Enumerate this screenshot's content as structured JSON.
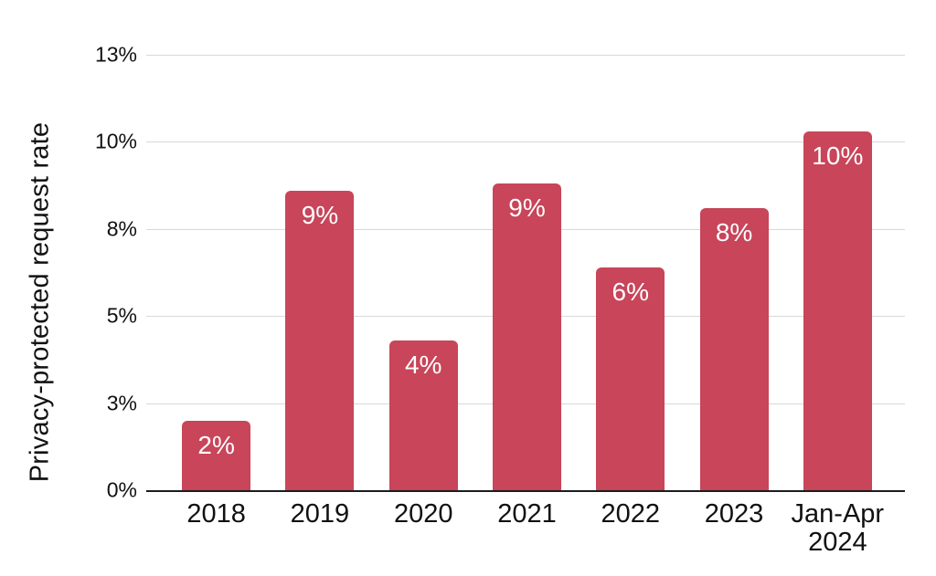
{
  "chart_data": {
    "type": "bar",
    "title": "",
    "xlabel": "",
    "ylabel": "Privacy-protected request rate",
    "categories": [
      "2018",
      "2019",
      "2020",
      "2021",
      "2022",
      "2023",
      "Jan-Apr 2024"
    ],
    "values": [
      2.0,
      8.6,
      4.3,
      8.8,
      6.4,
      8.1,
      10.3
    ],
    "bar_labels": [
      "2%",
      "9%",
      "4%",
      "9%",
      "6%",
      "8%",
      "10%"
    ],
    "ylim": [
      0,
      12.5
    ],
    "yticks": [
      {
        "value": 0,
        "label": "0%"
      },
      {
        "value": 2.5,
        "label": "3%"
      },
      {
        "value": 5,
        "label": "5%"
      },
      {
        "value": 7.5,
        "label": "8%"
      },
      {
        "value": 10,
        "label": "10%"
      },
      {
        "value": 12.5,
        "label": "13%"
      }
    ],
    "grid": "horizontal",
    "legend": "none",
    "bar_color": "#C8455A",
    "bar_label_color": "#ffffff",
    "gridline_color": "#d8d8d8",
    "axis_line_color": "#1c1c1c",
    "text_color": "#111111"
  }
}
